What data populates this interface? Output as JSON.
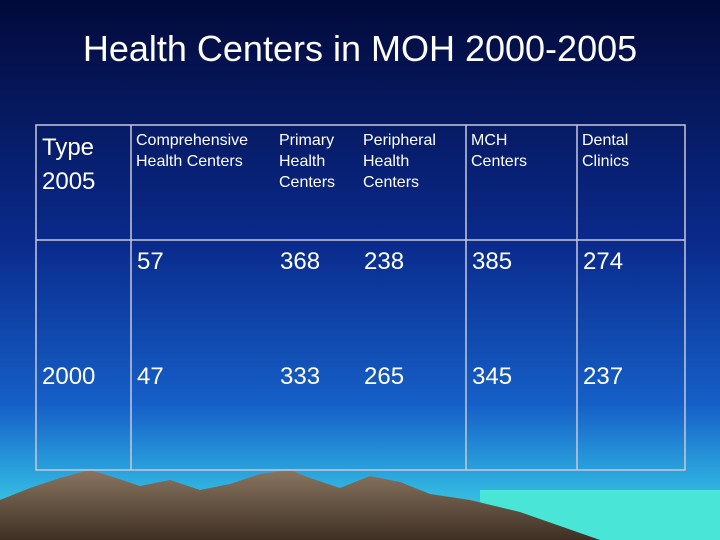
{
  "title": "Health Centers in MOH 2000-2005",
  "table": {
    "header": [
      "Type\n2005",
      "Comprehensive\nHealth Centers",
      "Primary\nHealth\nCenters",
      "Peripheral\nHealth\nCenters",
      "MCH\nCenters",
      "Dental\nClinics"
    ],
    "rows": [
      [
        null,
        "57",
        "368",
        "238",
        "385",
        "274"
      ],
      [
        "2000",
        "47",
        "333",
        "265",
        "345",
        "237"
      ]
    ]
  }
}
